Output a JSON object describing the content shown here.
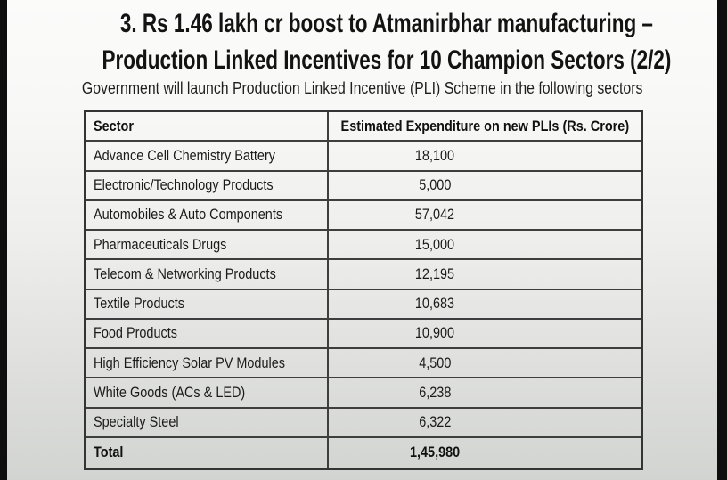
{
  "page": {
    "title_line1": "3. Rs 1.46 lakh cr boost to Atmanirbhar manufacturing –",
    "title_line2": "Production Linked Incentives for 10 Champion Sectors (2/2)",
    "subtitle": "Government will launch Production Linked Incentive (PLI) Scheme in the following sectors"
  },
  "table": {
    "headers": {
      "sector": "Sector",
      "value": "Estimated Expenditure on new PLIs (Rs. Crore)"
    },
    "rows": [
      {
        "sector": "Advance Cell Chemistry Battery",
        "value": "18,100"
      },
      {
        "sector": "Electronic/Technology Products",
        "value": "5,000"
      },
      {
        "sector": "Automobiles & Auto Components",
        "value": "57,042"
      },
      {
        "sector": "Pharmaceuticals Drugs",
        "value": "15,000"
      },
      {
        "sector": "Telecom & Networking Products",
        "value": "12,195"
      },
      {
        "sector": "Textile Products",
        "value": "10,683"
      },
      {
        "sector": "Food Products",
        "value": "10,900"
      },
      {
        "sector": "High Efficiency Solar PV Modules",
        "value": "4,500"
      },
      {
        "sector": "White Goods (ACs & LED)",
        "value": "6,238"
      },
      {
        "sector": "Specialty Steel",
        "value": "6,322"
      }
    ],
    "total": {
      "sector": "Total",
      "value": "1,45,980"
    }
  },
  "colors": {
    "table_border": "#3e3e3e",
    "text": "#1a1a1a",
    "side_bars": "#0e0e0e",
    "background_top": "#fbfbfa",
    "background_bottom": "#d2d4d1"
  },
  "chart_data": {
    "type": "table",
    "title": "3. Rs 1.46 lakh cr boost to Atmanirbhar manufacturing – Production Linked Incentives for 10 Champion Sectors (2/2)",
    "subtitle": "Government will launch Production Linked Incentive (PLI) Scheme in the following sectors",
    "columns": [
      "Sector",
      "Estimated Expenditure on new PLIs (Rs. Crore)"
    ],
    "rows": [
      [
        "Advance Cell Chemistry Battery",
        18100
      ],
      [
        "Electronic/Technology Products",
        5000
      ],
      [
        "Automobiles & Auto Components",
        57042
      ],
      [
        "Pharmaceuticals Drugs",
        15000
      ],
      [
        "Telecom & Networking Products",
        12195
      ],
      [
        "Textile Products",
        10683
      ],
      [
        "Food Products",
        10900
      ],
      [
        "High Efficiency Solar PV Modules",
        4500
      ],
      [
        "White Goods (ACs & LED)",
        6238
      ],
      [
        "Specialty Steel",
        6322
      ]
    ],
    "total_row": [
      "Total",
      145980
    ],
    "value_format": "indian-grouping"
  }
}
